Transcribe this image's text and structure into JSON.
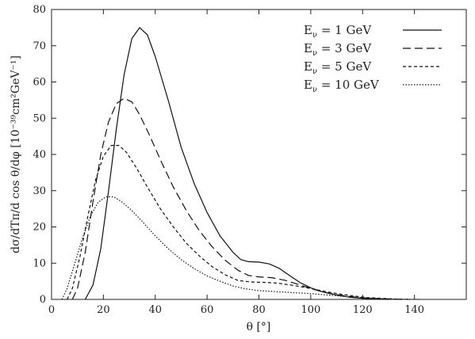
{
  "chart_data": {
    "type": "line",
    "title": "",
    "xlabel": "θ [°]",
    "ylabel": "dσ/dTπ/d cos θ/dφ [10⁻³⁹cm²GeV⁻¹]",
    "xlim": [
      0,
      160
    ],
    "ylim": [
      0,
      80
    ],
    "x_ticks": [
      0,
      20,
      40,
      60,
      80,
      100,
      120,
      140
    ],
    "y_ticks": [
      0,
      10,
      20,
      30,
      40,
      50,
      60,
      70,
      80
    ],
    "grid": false,
    "legend_position": "top-right",
    "series": [
      {
        "name": "E_ν = 1 GeV",
        "dash": "solid",
        "points": [
          [
            13,
            0
          ],
          [
            16,
            4
          ],
          [
            19,
            14
          ],
          [
            22,
            30
          ],
          [
            25,
            47
          ],
          [
            28,
            62
          ],
          [
            31,
            72
          ],
          [
            34,
            75
          ],
          [
            37,
            73
          ],
          [
            40,
            67
          ],
          [
            45,
            55
          ],
          [
            50,
            42
          ],
          [
            55,
            32
          ],
          [
            60,
            24
          ],
          [
            65,
            17.5
          ],
          [
            70,
            13
          ],
          [
            73,
            11
          ],
          [
            76,
            10.4
          ],
          [
            80,
            10.3
          ],
          [
            84,
            9.8
          ],
          [
            88,
            8.5
          ],
          [
            92,
            6.5
          ],
          [
            96,
            4.6
          ],
          [
            100,
            3.2
          ],
          [
            105,
            2
          ],
          [
            110,
            1.2
          ],
          [
            115,
            0.6
          ],
          [
            120,
            0.3
          ],
          [
            125,
            0.1
          ],
          [
            130,
            0
          ]
        ]
      },
      {
        "name": "E_ν = 3 GeV",
        "dash": "10,5",
        "points": [
          [
            8,
            0
          ],
          [
            10,
            3
          ],
          [
            13,
            13
          ],
          [
            16,
            27
          ],
          [
            19,
            40
          ],
          [
            22,
            49
          ],
          [
            25,
            54
          ],
          [
            28,
            55.5
          ],
          [
            31,
            54.5
          ],
          [
            34,
            51
          ],
          [
            38,
            45
          ],
          [
            42,
            38.5
          ],
          [
            47,
            31
          ],
          [
            52,
            24.5
          ],
          [
            57,
            19
          ],
          [
            62,
            14.5
          ],
          [
            67,
            10.8
          ],
          [
            72,
            8
          ],
          [
            76,
            6.6
          ],
          [
            80,
            6.2
          ],
          [
            85,
            6
          ],
          [
            90,
            5.3
          ],
          [
            95,
            4.2
          ],
          [
            100,
            3
          ],
          [
            105,
            2
          ],
          [
            110,
            1.3
          ],
          [
            115,
            0.8
          ],
          [
            120,
            0.4
          ],
          [
            125,
            0.2
          ],
          [
            130,
            0.1
          ],
          [
            135,
            0
          ]
        ]
      },
      {
        "name": "E_ν = 5 GeV",
        "dash": "4,3",
        "points": [
          [
            6,
            0
          ],
          [
            8,
            3
          ],
          [
            11,
            12
          ],
          [
            14,
            23
          ],
          [
            17,
            33
          ],
          [
            20,
            39.5
          ],
          [
            23,
            42.5
          ],
          [
            26,
            42.5
          ],
          [
            29,
            40.5
          ],
          [
            33,
            36
          ],
          [
            37,
            31
          ],
          [
            42,
            25
          ],
          [
            47,
            20
          ],
          [
            52,
            15.5
          ],
          [
            57,
            12
          ],
          [
            62,
            9
          ],
          [
            67,
            6.8
          ],
          [
            72,
            5.2
          ],
          [
            77,
            4.8
          ],
          [
            82,
            4.7
          ],
          [
            87,
            4.5
          ],
          [
            92,
            4
          ],
          [
            97,
            3.4
          ],
          [
            102,
            2.7
          ],
          [
            107,
            2
          ],
          [
            112,
            1.4
          ],
          [
            117,
            0.9
          ],
          [
            122,
            0.5
          ],
          [
            127,
            0.3
          ],
          [
            132,
            0.1
          ],
          [
            138,
            0
          ]
        ]
      },
      {
        "name": "E_ν = 10 GeV",
        "dash": "1.5,2",
        "points": [
          [
            4,
            0
          ],
          [
            6,
            3
          ],
          [
            9,
            10
          ],
          [
            12,
            17
          ],
          [
            15,
            23
          ],
          [
            18,
            26.8
          ],
          [
            21,
            28.3
          ],
          [
            24,
            28.3
          ],
          [
            27,
            27
          ],
          [
            31,
            24.5
          ],
          [
            35,
            21.5
          ],
          [
            40,
            17.5
          ],
          [
            45,
            14
          ],
          [
            50,
            11
          ],
          [
            55,
            8.5
          ],
          [
            60,
            6.5
          ],
          [
            65,
            5
          ],
          [
            70,
            3.7
          ],
          [
            75,
            2.9
          ],
          [
            80,
            2.4
          ],
          [
            85,
            2.2
          ],
          [
            90,
            2
          ],
          [
            95,
            1.8
          ],
          [
            100,
            1.6
          ],
          [
            105,
            1.3
          ],
          [
            110,
            1
          ],
          [
            115,
            0.7
          ],
          [
            120,
            0.45
          ],
          [
            125,
            0.3
          ],
          [
            130,
            0.15
          ],
          [
            135,
            0.05
          ],
          [
            142,
            0
          ]
        ]
      }
    ]
  }
}
